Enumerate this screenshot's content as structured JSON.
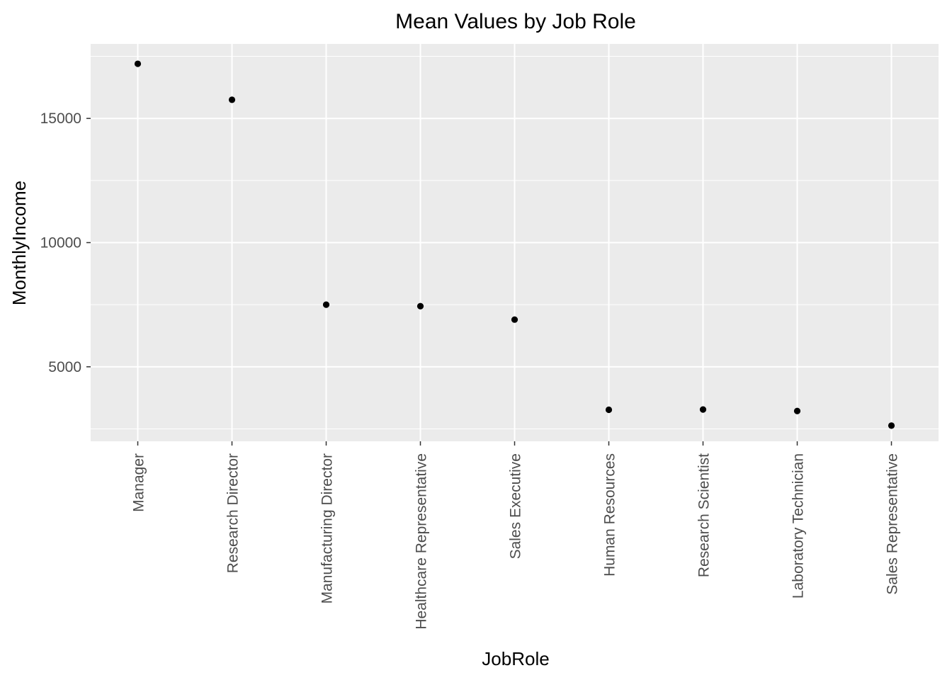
{
  "chart_data": {
    "type": "scatter",
    "title": "Mean Values by Job Role",
    "xlabel": "JobRole",
    "ylabel": "MonthlyIncome",
    "categories": [
      "Manager",
      "Research Director",
      "Manufacturing Director",
      "Healthcare Representative",
      "Sales Executive",
      "Human Resources",
      "Research Scientist",
      "Laboratory Technician",
      "Sales Representative"
    ],
    "values": [
      17200,
      15750,
      7500,
      7440,
      6900,
      3270,
      3280,
      3220,
      2630
    ],
    "ylim": [
      2000,
      18000
    ],
    "y_ticks": [
      "5000",
      "10000",
      "15000"
    ],
    "grid": true,
    "colors": {
      "panel_background": "#ebebeb",
      "grid_line": "#ffffff",
      "point": "#000000",
      "tick_label": "#4d4d4d",
      "tick_mark": "#333333"
    }
  }
}
